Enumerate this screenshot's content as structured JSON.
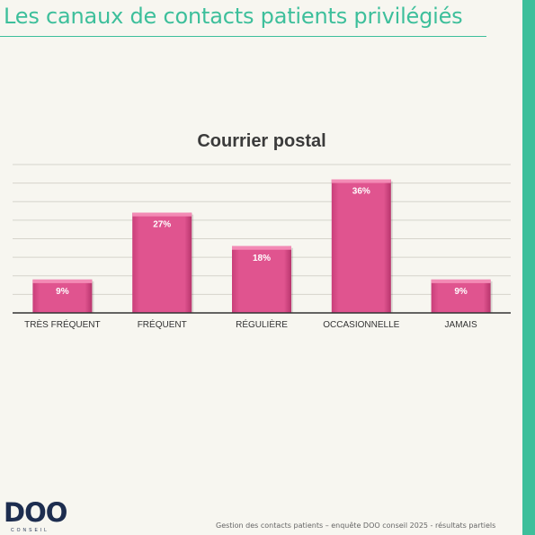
{
  "page": {
    "title": "Les canaux de contacts patients privilégiés",
    "footer": "Gestion des contacts patients – enquête DOO conseil 2025 - résultats partiels",
    "logo": {
      "text": "DOO",
      "subtext": "CONSEIL"
    }
  },
  "colors": {
    "accent": "#3dbf9b",
    "bar": "#e0548f",
    "bar_light": "#f38ab5",
    "background": "#f7f6f0"
  },
  "chart_data": {
    "type": "bar",
    "title": "Courrier postal",
    "categories": [
      "TRÈS FRÉQUENT",
      "FRÉQUENT",
      "RÉGULIÈRE",
      "OCCASIONNELLE",
      "JAMAIS"
    ],
    "values": [
      9,
      27,
      18,
      36,
      9
    ],
    "data_labels": [
      "9%",
      "27%",
      "18%",
      "36%",
      "9%"
    ],
    "ylim": [
      0,
      40
    ],
    "grid": true,
    "xlabel": "",
    "ylabel": ""
  }
}
